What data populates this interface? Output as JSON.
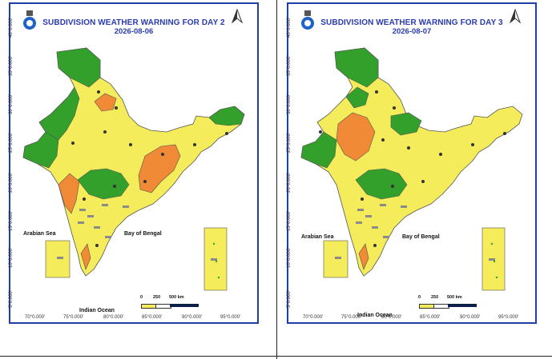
{
  "colors": {
    "green": "#33a02c",
    "yellow": "#f4ec5a",
    "orange": "#f08a36",
    "frame": "#1f3fa8",
    "title": "#2a3bb0"
  },
  "legend_scale": {
    "zero": "0",
    "mid": "250",
    "end": "500 km"
  },
  "longitude_labels": [
    "70°0.000'",
    "75°0.000'",
    "80°0.000'",
    "85°0.000'",
    "90°0.000'",
    "95°0.000'"
  ],
  "latitude_labels": [
    "5°0.000'",
    "10°0.000'",
    "15°0.000'",
    "20°0.000'",
    "25°0.000'",
    "30°0.000'",
    "35°0.000'",
    "40°0.000'"
  ],
  "sea_labels": {
    "arabian": "Arabian Sea",
    "bengal": "Bay of Bengal",
    "indian": "Indian Ocean"
  },
  "panels": [
    {
      "title": "SUBDIVISION WEATHER WARNING FOR DAY 2",
      "date": "2026-08-06"
    },
    {
      "title": "SUBDIVISION WEATHER WARNING FOR DAY 3",
      "date": "2026-08-07"
    }
  ],
  "icons": [
    "imd-logo-icon",
    "north-arrow-icon",
    "thunderstorm-icon",
    "heavy-rain-icon"
  ]
}
